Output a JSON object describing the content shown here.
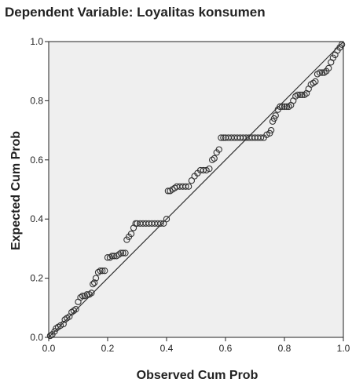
{
  "chart_data": {
    "type": "scatter",
    "title": "Dependent Variable: Loyalitas konsumen",
    "xlabel": "Observed Cum Prob",
    "ylabel": "Expected Cum Prob",
    "xlim": [
      0,
      1
    ],
    "ylim": [
      0,
      1
    ],
    "x_ticks": [
      "0.0",
      "0.2",
      "0.4",
      "0.6",
      "0.8",
      "1.0"
    ],
    "y_ticks": [
      "0.0",
      "0.2",
      "0.4",
      "0.6",
      "0.8",
      "1.0"
    ],
    "grid": false,
    "reference_line": {
      "from": [
        0,
        0
      ],
      "to": [
        1,
        1
      ]
    },
    "colors": {
      "plot_background": "#efefef",
      "marker_stroke": "#333333",
      "reference_line": "#333333",
      "axes": "#222222"
    },
    "series": [
      {
        "points": [
          [
            0.005,
            0.005
          ],
          [
            0.012,
            0.01
          ],
          [
            0.02,
            0.02
          ],
          [
            0.025,
            0.03
          ],
          [
            0.032,
            0.035
          ],
          [
            0.04,
            0.04
          ],
          [
            0.05,
            0.045
          ],
          [
            0.055,
            0.06
          ],
          [
            0.062,
            0.065
          ],
          [
            0.07,
            0.07
          ],
          [
            0.078,
            0.085
          ],
          [
            0.085,
            0.09
          ],
          [
            0.092,
            0.095
          ],
          [
            0.1,
            0.12
          ],
          [
            0.108,
            0.135
          ],
          [
            0.115,
            0.14
          ],
          [
            0.122,
            0.14
          ],
          [
            0.13,
            0.145
          ],
          [
            0.138,
            0.145
          ],
          [
            0.145,
            0.15
          ],
          [
            0.15,
            0.18
          ],
          [
            0.155,
            0.185
          ],
          [
            0.16,
            0.2
          ],
          [
            0.168,
            0.22
          ],
          [
            0.175,
            0.225
          ],
          [
            0.182,
            0.225
          ],
          [
            0.19,
            0.225
          ],
          [
            0.2,
            0.27
          ],
          [
            0.208,
            0.27
          ],
          [
            0.215,
            0.275
          ],
          [
            0.222,
            0.275
          ],
          [
            0.23,
            0.275
          ],
          [
            0.238,
            0.28
          ],
          [
            0.245,
            0.285
          ],
          [
            0.252,
            0.285
          ],
          [
            0.26,
            0.285
          ],
          [
            0.265,
            0.33
          ],
          [
            0.272,
            0.34
          ],
          [
            0.28,
            0.35
          ],
          [
            0.288,
            0.37
          ],
          [
            0.295,
            0.385
          ],
          [
            0.3,
            0.385
          ],
          [
            0.31,
            0.385
          ],
          [
            0.32,
            0.385
          ],
          [
            0.33,
            0.385
          ],
          [
            0.34,
            0.385
          ],
          [
            0.35,
            0.385
          ],
          [
            0.36,
            0.385
          ],
          [
            0.37,
            0.385
          ],
          [
            0.38,
            0.385
          ],
          [
            0.39,
            0.385
          ],
          [
            0.4,
            0.4
          ],
          [
            0.405,
            0.495
          ],
          [
            0.412,
            0.495
          ],
          [
            0.42,
            0.5
          ],
          [
            0.428,
            0.505
          ],
          [
            0.435,
            0.51
          ],
          [
            0.445,
            0.51
          ],
          [
            0.455,
            0.51
          ],
          [
            0.465,
            0.51
          ],
          [
            0.475,
            0.51
          ],
          [
            0.485,
            0.53
          ],
          [
            0.495,
            0.545
          ],
          [
            0.505,
            0.555
          ],
          [
            0.515,
            0.565
          ],
          [
            0.525,
            0.565
          ],
          [
            0.535,
            0.565
          ],
          [
            0.545,
            0.57
          ],
          [
            0.555,
            0.6
          ],
          [
            0.562,
            0.605
          ],
          [
            0.57,
            0.625
          ],
          [
            0.578,
            0.635
          ],
          [
            0.585,
            0.675
          ],
          [
            0.593,
            0.675
          ],
          [
            0.6,
            0.675
          ],
          [
            0.61,
            0.675
          ],
          [
            0.62,
            0.675
          ],
          [
            0.63,
            0.675
          ],
          [
            0.64,
            0.675
          ],
          [
            0.65,
            0.675
          ],
          [
            0.66,
            0.675
          ],
          [
            0.67,
            0.675
          ],
          [
            0.68,
            0.675
          ],
          [
            0.69,
            0.675
          ],
          [
            0.7,
            0.675
          ],
          [
            0.71,
            0.675
          ],
          [
            0.72,
            0.675
          ],
          [
            0.73,
            0.675
          ],
          [
            0.74,
            0.685
          ],
          [
            0.75,
            0.69
          ],
          [
            0.755,
            0.7
          ],
          [
            0.76,
            0.73
          ],
          [
            0.765,
            0.74
          ],
          [
            0.77,
            0.75
          ],
          [
            0.778,
            0.77
          ],
          [
            0.785,
            0.78
          ],
          [
            0.792,
            0.78
          ],
          [
            0.8,
            0.78
          ],
          [
            0.808,
            0.78
          ],
          [
            0.815,
            0.78
          ],
          [
            0.822,
            0.785
          ],
          [
            0.83,
            0.8
          ],
          [
            0.838,
            0.815
          ],
          [
            0.845,
            0.82
          ],
          [
            0.853,
            0.82
          ],
          [
            0.86,
            0.82
          ],
          [
            0.868,
            0.82
          ],
          [
            0.875,
            0.825
          ],
          [
            0.882,
            0.84
          ],
          [
            0.89,
            0.855
          ],
          [
            0.898,
            0.86
          ],
          [
            0.905,
            0.865
          ],
          [
            0.912,
            0.89
          ],
          [
            0.92,
            0.895
          ],
          [
            0.928,
            0.895
          ],
          [
            0.935,
            0.895
          ],
          [
            0.942,
            0.9
          ],
          [
            0.95,
            0.91
          ],
          [
            0.958,
            0.93
          ],
          [
            0.965,
            0.945
          ],
          [
            0.972,
            0.955
          ],
          [
            0.98,
            0.97
          ],
          [
            0.988,
            0.98
          ],
          [
            0.995,
            0.99
          ]
        ]
      }
    ]
  }
}
